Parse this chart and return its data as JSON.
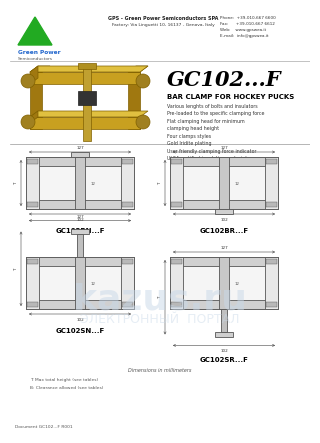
{
  "bg_color": "#ffffff",
  "header_company": "GPS - Green Power Semiconductors SPA",
  "header_factory": "Factory: Via Linguetti 10, 16137 - Genova, Italy",
  "header_phone": "Phone:  +39-010-667 6600",
  "header_fax": "Fax:      +39-010-667 6612",
  "header_web": "Web:    www.gpswea.it",
  "header_email": "E-mail:  info@gpswea.it",
  "logo_text": "Green Power",
  "logo_sub": "Semiconductors",
  "title": "GC102...F",
  "subtitle": "BAR CLAMP FOR HOCKEY PUCKS",
  "features": [
    "Various lenghts of bolts and insulators",
    "Pre-loaded to the specific clamping force",
    "Flat clamping head for minimum",
    "clamping head height",
    "Four clamps styles",
    "Gold Iridite plating",
    "User friendly clamping force indicator",
    "UL94 certified insulation material"
  ],
  "dim_note": "Dimensions in millimeters",
  "footnote1": "T: Max total height (see tables)",
  "footnote2": "B: Clearance allowed (see tables)",
  "doc_num": "Document GC102...F R001",
  "watermark1": "kazus.ru",
  "watermark2": "ЭЛЕКТРОННЫЙ  ПОРТАЛ",
  "bar_gold": "#c8a020",
  "bar_gold2": "#a07810",
  "bar_gold3": "#e0c040",
  "names": [
    "GC102BN...F",
    "GC102BR...F",
    "GC102SN...F",
    "GC102SR...F"
  ]
}
